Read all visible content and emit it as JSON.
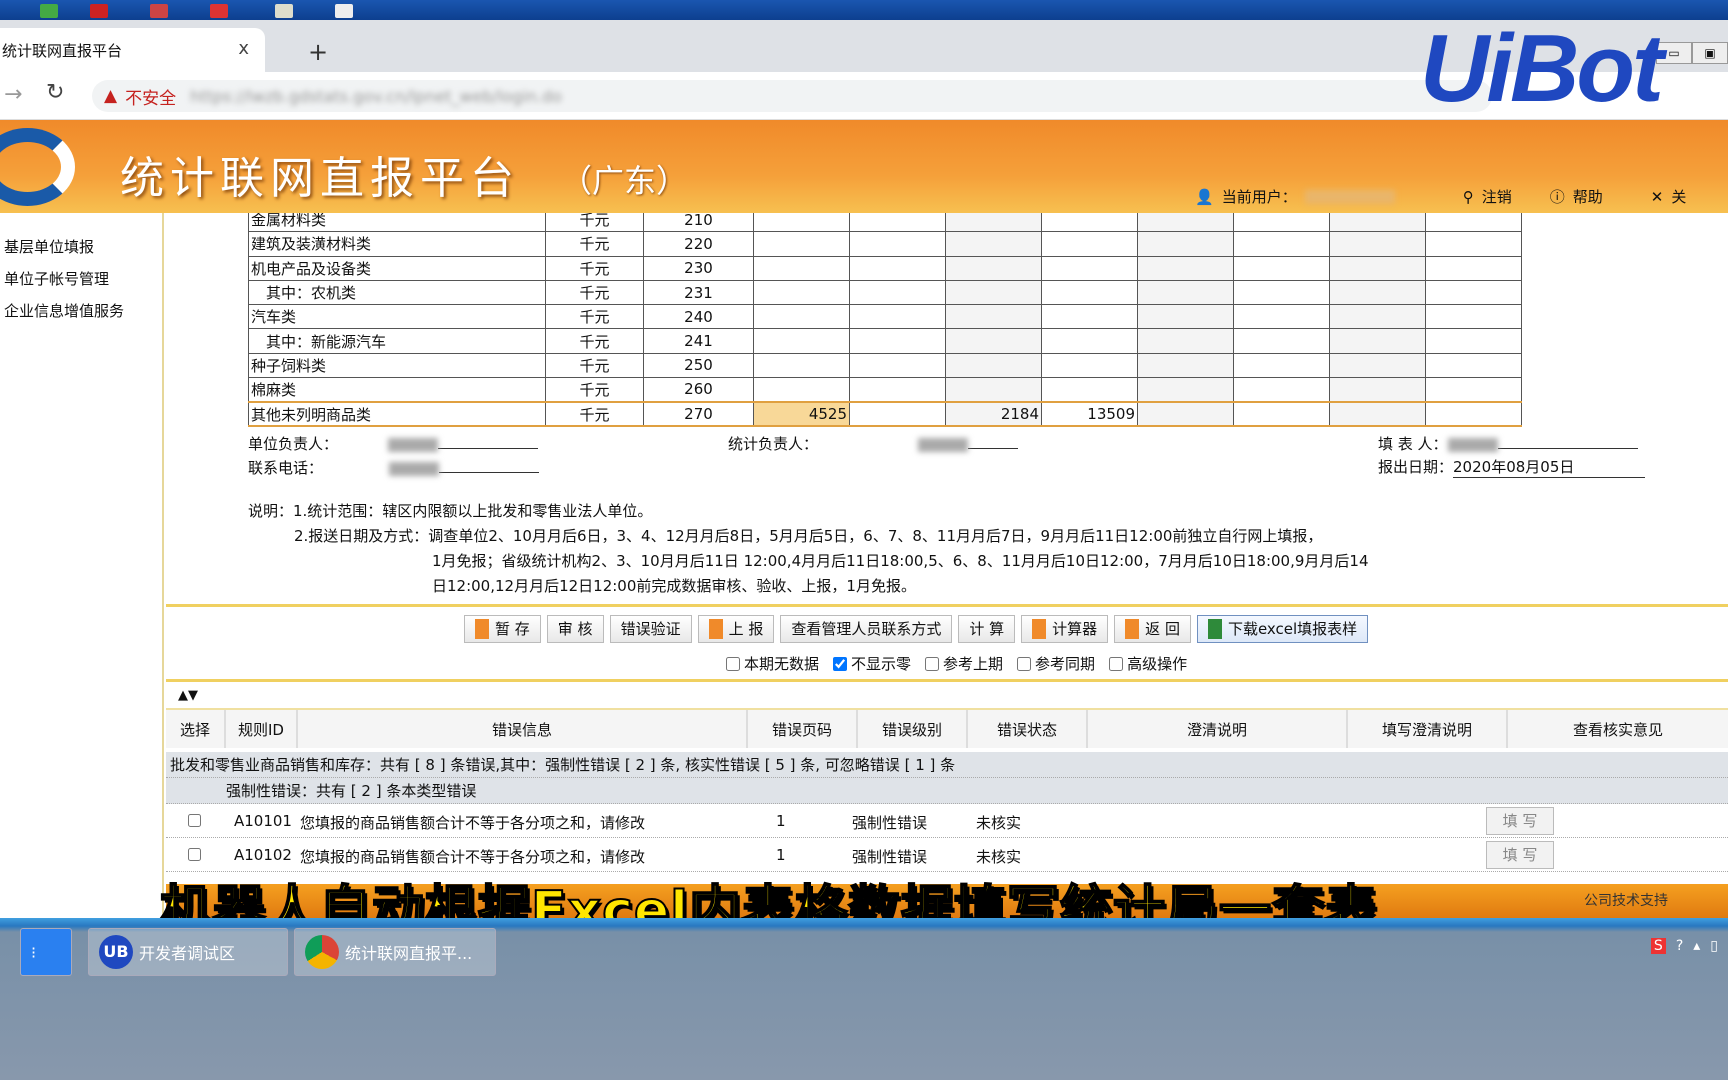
{
  "browser": {
    "tab_title": "统计联网直报平台",
    "close": "x",
    "new_tab": "+",
    "security_label": "不安全",
    "url": "https://lwzb.gdstats.gov.cn/lpnet_web/login.do"
  },
  "banner": {
    "title": "统计联网直报平台",
    "region": "（广东）",
    "current_user_label": "当前用户：",
    "logout": "注销",
    "help": "帮助",
    "close": "关"
  },
  "watermark": "UiBot",
  "sidebar": {
    "items": [
      {
        "label": "基层单位填报"
      },
      {
        "label": "单位子帐号管理"
      },
      {
        "label": "企业信息增值服务"
      }
    ]
  },
  "table": {
    "rows": [
      {
        "name": "金属材料类",
        "unit": "千元",
        "code": "210",
        "values": [
          "",
          "",
          "",
          "",
          "",
          "",
          "",
          ""
        ]
      },
      {
        "name": "建筑及装潢材料类",
        "unit": "千元",
        "code": "220",
        "values": [
          "",
          "",
          "",
          "",
          "",
          "",
          "",
          ""
        ]
      },
      {
        "name": "机电产品及设备类",
        "unit": "千元",
        "code": "230",
        "values": [
          "",
          "",
          "",
          "",
          "",
          "",
          "",
          ""
        ]
      },
      {
        "name": "　其中：农机类",
        "unit": "千元",
        "code": "231",
        "values": [
          "",
          "",
          "",
          "",
          "",
          "",
          "",
          ""
        ]
      },
      {
        "name": "汽车类",
        "unit": "千元",
        "code": "240",
        "values": [
          "",
          "",
          "",
          "",
          "",
          "",
          "",
          ""
        ]
      },
      {
        "name": "　其中：新能源汽车",
        "unit": "千元",
        "code": "241",
        "values": [
          "",
          "",
          "",
          "",
          "",
          "",
          "",
          ""
        ]
      },
      {
        "name": "种子饲料类",
        "unit": "千元",
        "code": "250",
        "values": [
          "",
          "",
          "",
          "",
          "",
          "",
          "",
          ""
        ]
      },
      {
        "name": "棉麻类",
        "unit": "千元",
        "code": "260",
        "values": [
          "",
          "",
          "",
          "",
          "",
          "",
          "",
          ""
        ]
      },
      {
        "name": "其他未列明商品类",
        "unit": "千元",
        "code": "270",
        "values": [
          "4525",
          "",
          "2184",
          "13509",
          "",
          "",
          "",
          ""
        ]
      }
    ]
  },
  "signature": {
    "unit_head": "单位负责人：",
    "stat_head": "统计负责人：",
    "filler": "填 表 人：",
    "phone": "联系电话：",
    "date_label": "报出日期：",
    "date": "2020年08月05日"
  },
  "notes": [
    "说明：1.统计范围：辖区内限额以上批发和零售业法人单位。",
    "2.报送日期及方式：调查单位2、10月月后6日，3、4、12月月后8日，5月月后5日，6、7、8、11月月后7日，9月月后11日12:00前独立自行网上填报，",
    "1月免报；省级统计机构2、3、10月月后11日 12:00,4月月后11日18:00,5、6、8、11月月后10日12:00，7月月后10日18:00,9月月后14",
    "日12:00,12月月后12日12:00前完成数据审核、验收、上报，1月免报。"
  ],
  "toolbar": {
    "buttons": [
      "暂 存",
      "审 核",
      "错误验证",
      "上 报",
      "查看管理人员联系方式",
      "计 算",
      "计算器",
      "返 回",
      "下载excel填报表样"
    ],
    "checkboxes": [
      {
        "label": "本期无数据",
        "checked": false
      },
      {
        "label": "不显示零",
        "checked": true
      },
      {
        "label": "参考上期",
        "checked": false
      },
      {
        "label": "参考同期",
        "checked": false
      },
      {
        "label": "高级操作",
        "checked": false
      }
    ]
  },
  "errors": {
    "columns": [
      "选择",
      "规则ID",
      "错误信息",
      "错误页码",
      "错误级别",
      "错误状态",
      "澄清说明",
      "填写澄清说明",
      "查看核实意见"
    ],
    "summary": "批发和零售业商品销售和库存：共有 [ 8 ] 条错误,其中：强制性错误 [ 2 ] 条, 核实性错误 [ 5 ] 条, 可忽略错误 [ 1 ] 条",
    "group": "强制性错误：共有 [ 2 ] 条本类型错误",
    "rows": [
      {
        "id": "A10101",
        "msg": "您填报的商品销售额合计不等于各分项之和，请修改",
        "page": "1",
        "level": "强制性错误",
        "status": "未核实",
        "action": "填 写"
      },
      {
        "id": "A10102",
        "msg": "您填报的商品销售额合计不等于各分项之和，请修改",
        "page": "1",
        "level": "强制性错误",
        "status": "未核实",
        "action": "填 写"
      }
    ]
  },
  "footer": "公司技术支持",
  "caption": "机器人自动根据Excel内表格数据填写统计局一套表",
  "taskbar": {
    "items": [
      {
        "label": "开发者调试区"
      },
      {
        "label": "统计联网直报平..."
      }
    ]
  },
  "colors": {
    "banner": "#f08a2a",
    "accent_blue": "#1f48c0",
    "caption": "#ffe600"
  }
}
